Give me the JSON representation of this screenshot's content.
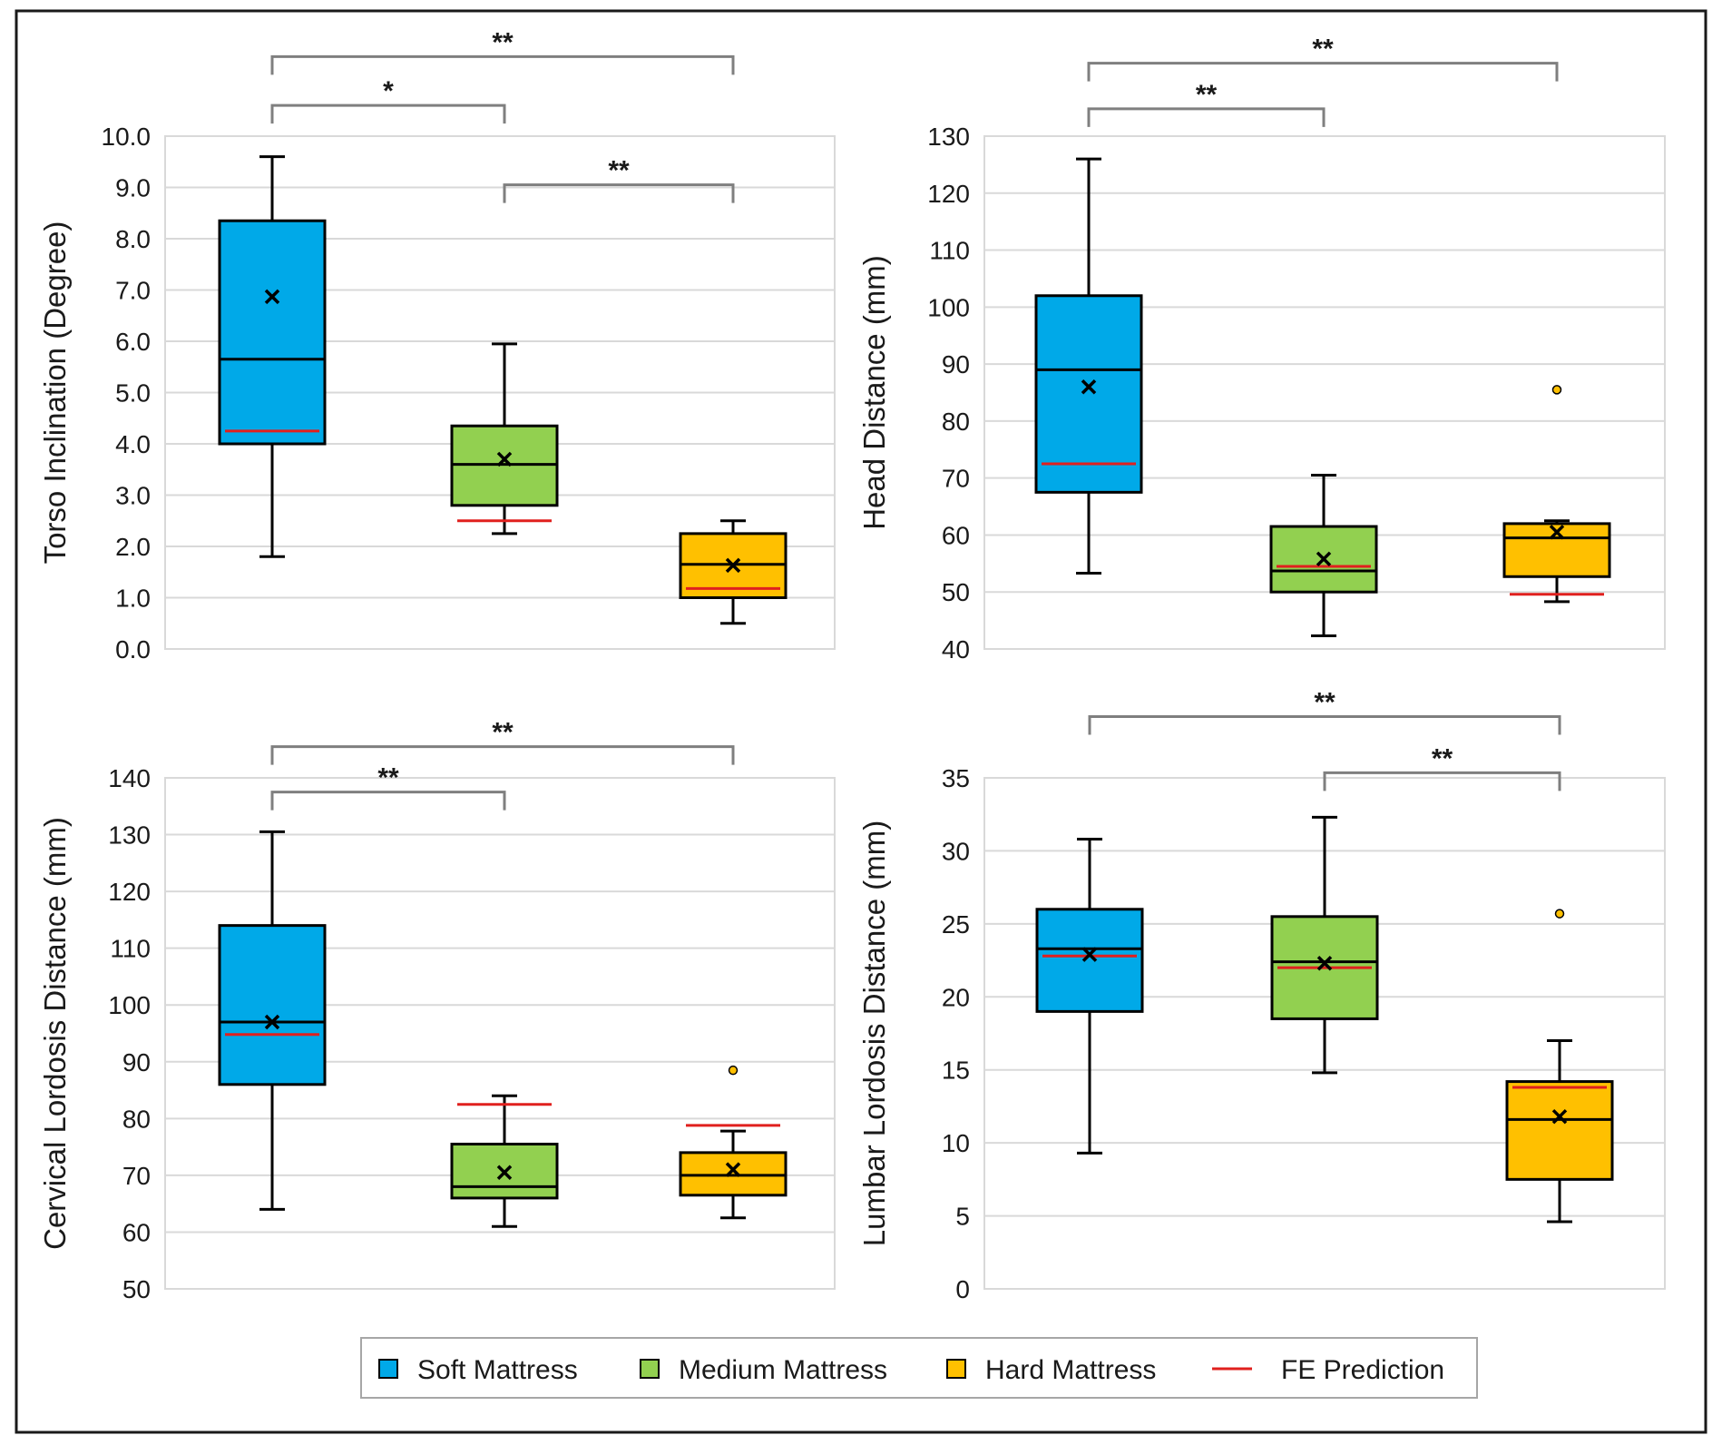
{
  "colors": {
    "soft": "#00a9e8",
    "medium": "#92d050",
    "hard": "#ffc000",
    "fe": "#e0201e",
    "grid": "#d9d9d9",
    "bracket": "#7f7f7f"
  },
  "legend": [
    {
      "key": "soft",
      "label": "Soft Mattress",
      "kind": "box"
    },
    {
      "key": "medium",
      "label": "Medium Mattress",
      "kind": "box"
    },
    {
      "key": "hard",
      "label": "Hard Mattress",
      "kind": "box"
    },
    {
      "key": "fe",
      "label": "FE Prediction",
      "kind": "line"
    }
  ],
  "chart_data": [
    {
      "type": "box",
      "id": "torso",
      "ylabel": "Torso Inclination (Degree)",
      "ylim": [
        0,
        10
      ],
      "ticks": [
        "0.0",
        "1.0",
        "2.0",
        "3.0",
        "4.0",
        "5.0",
        "6.0",
        "7.0",
        "8.0",
        "9.0",
        "10.0"
      ],
      "tick_values": [
        0,
        1,
        2,
        3,
        4,
        5,
        6,
        7,
        8,
        9,
        10
      ],
      "categories": [
        "Soft Mattress",
        "Medium Mattress",
        "Hard Mattress"
      ],
      "boxes": [
        {
          "key": "soft",
          "min": 1.8,
          "q1": 4.0,
          "median": 5.65,
          "q3": 8.35,
          "max": 9.6,
          "mean": 6.87,
          "fe": 4.25,
          "outliers": []
        },
        {
          "key": "medium",
          "min": 2.25,
          "q1": 2.8,
          "median": 3.6,
          "q3": 4.35,
          "max": 5.95,
          "mean": 3.7,
          "fe": 2.5,
          "outliers": []
        },
        {
          "key": "hard",
          "min": 0.5,
          "q1": 1.0,
          "median": 1.65,
          "q3": 2.25,
          "max": 2.5,
          "mean": 1.63,
          "fe": 1.18,
          "outliers": []
        }
      ],
      "significance": [
        {
          "from": 0,
          "to": 1,
          "label": "*",
          "y": 10.6
        },
        {
          "from": 0,
          "to": 2,
          "label": "**",
          "y": 11.55
        },
        {
          "from": 1,
          "to": 2,
          "label": "**",
          "y": 9.05
        }
      ]
    },
    {
      "type": "box",
      "id": "head",
      "ylabel": "Head Distance (mm)",
      "ylim": [
        40,
        130
      ],
      "ticks": [
        "40",
        "50",
        "60",
        "70",
        "80",
        "90",
        "100",
        "110",
        "120",
        "130"
      ],
      "tick_values": [
        40,
        50,
        60,
        70,
        80,
        90,
        100,
        110,
        120,
        130
      ],
      "categories": [
        "Soft Mattress",
        "Medium Mattress",
        "Hard Mattress"
      ],
      "boxes": [
        {
          "key": "soft",
          "min": 53.3,
          "q1": 67.5,
          "median": 89.0,
          "q3": 102.0,
          "max": 126.0,
          "mean": 86.0,
          "fe": 72.5,
          "outliers": []
        },
        {
          "key": "medium",
          "min": 42.3,
          "q1": 50.0,
          "median": 53.7,
          "q3": 61.5,
          "max": 70.5,
          "mean": 55.8,
          "fe": 54.5,
          "outliers": []
        },
        {
          "key": "hard",
          "min": 48.3,
          "q1": 52.7,
          "median": 59.5,
          "q3": 62.0,
          "max": 62.5,
          "mean": 60.5,
          "fe": 49.6,
          "outliers": [
            85.5
          ]
        }
      ],
      "significance": [
        {
          "from": 0,
          "to": 1,
          "label": "**",
          "y": 134.8
        },
        {
          "from": 0,
          "to": 2,
          "label": "**",
          "y": 142.8
        }
      ]
    },
    {
      "type": "box",
      "id": "cervical",
      "ylabel": "Cervical Lordosis Distance (mm)",
      "ylim": [
        50,
        140
      ],
      "ticks": [
        "50",
        "60",
        "70",
        "80",
        "90",
        "100",
        "110",
        "120",
        "130",
        "140"
      ],
      "tick_values": [
        50,
        60,
        70,
        80,
        90,
        100,
        110,
        120,
        130,
        140
      ],
      "categories": [
        "Soft Mattress",
        "Medium Mattress",
        "Hard Mattress"
      ],
      "boxes": [
        {
          "key": "soft",
          "min": 64.0,
          "q1": 86.0,
          "median": 97.0,
          "q3": 114.0,
          "max": 130.5,
          "mean": 97.0,
          "fe": 94.8,
          "outliers": []
        },
        {
          "key": "medium",
          "min": 61.0,
          "q1": 66.0,
          "median": 68.0,
          "q3": 75.5,
          "max": 84.0,
          "mean": 70.5,
          "fe": 82.5,
          "outliers": []
        },
        {
          "key": "hard",
          "min": 62.5,
          "q1": 66.5,
          "median": 70.0,
          "q3": 74.0,
          "max": 77.8,
          "mean": 71.0,
          "fe": 78.8,
          "outliers": [
            88.5
          ]
        }
      ],
      "significance": [
        {
          "from": 0,
          "to": 1,
          "label": "**",
          "y": 137.5
        },
        {
          "from": 0,
          "to": 2,
          "label": "**",
          "y": 145.5
        }
      ]
    },
    {
      "type": "box",
      "id": "lumbar",
      "ylabel": "Lumbar Lordosis Distance (mm)",
      "ylim": [
        0,
        35
      ],
      "ticks": [
        "0",
        "5",
        "10",
        "15",
        "20",
        "25",
        "30",
        "35"
      ],
      "tick_values": [
        0,
        5,
        10,
        15,
        20,
        25,
        30,
        35
      ],
      "categories": [
        "Soft Mattress",
        "Medium Mattress",
        "Hard Mattress"
      ],
      "boxes": [
        {
          "key": "soft",
          "min": 9.3,
          "q1": 19.0,
          "median": 23.3,
          "q3": 26.0,
          "max": 30.8,
          "mean": 22.9,
          "fe": 22.8,
          "outliers": []
        },
        {
          "key": "medium",
          "min": 14.8,
          "q1": 18.5,
          "median": 22.4,
          "q3": 25.5,
          "max": 32.3,
          "mean": 22.3,
          "fe": 22.0,
          "outliers": []
        },
        {
          "key": "hard",
          "min": 4.6,
          "q1": 7.5,
          "median": 11.6,
          "q3": 14.2,
          "max": 17.0,
          "mean": 11.8,
          "fe": 13.8,
          "outliers": [
            25.7
          ]
        }
      ],
      "significance": [
        {
          "from": 1,
          "to": 2,
          "label": "**",
          "y": 35.35
        },
        {
          "from": 0,
          "to": 2,
          "label": "**",
          "y": 39.2
        }
      ]
    }
  ]
}
